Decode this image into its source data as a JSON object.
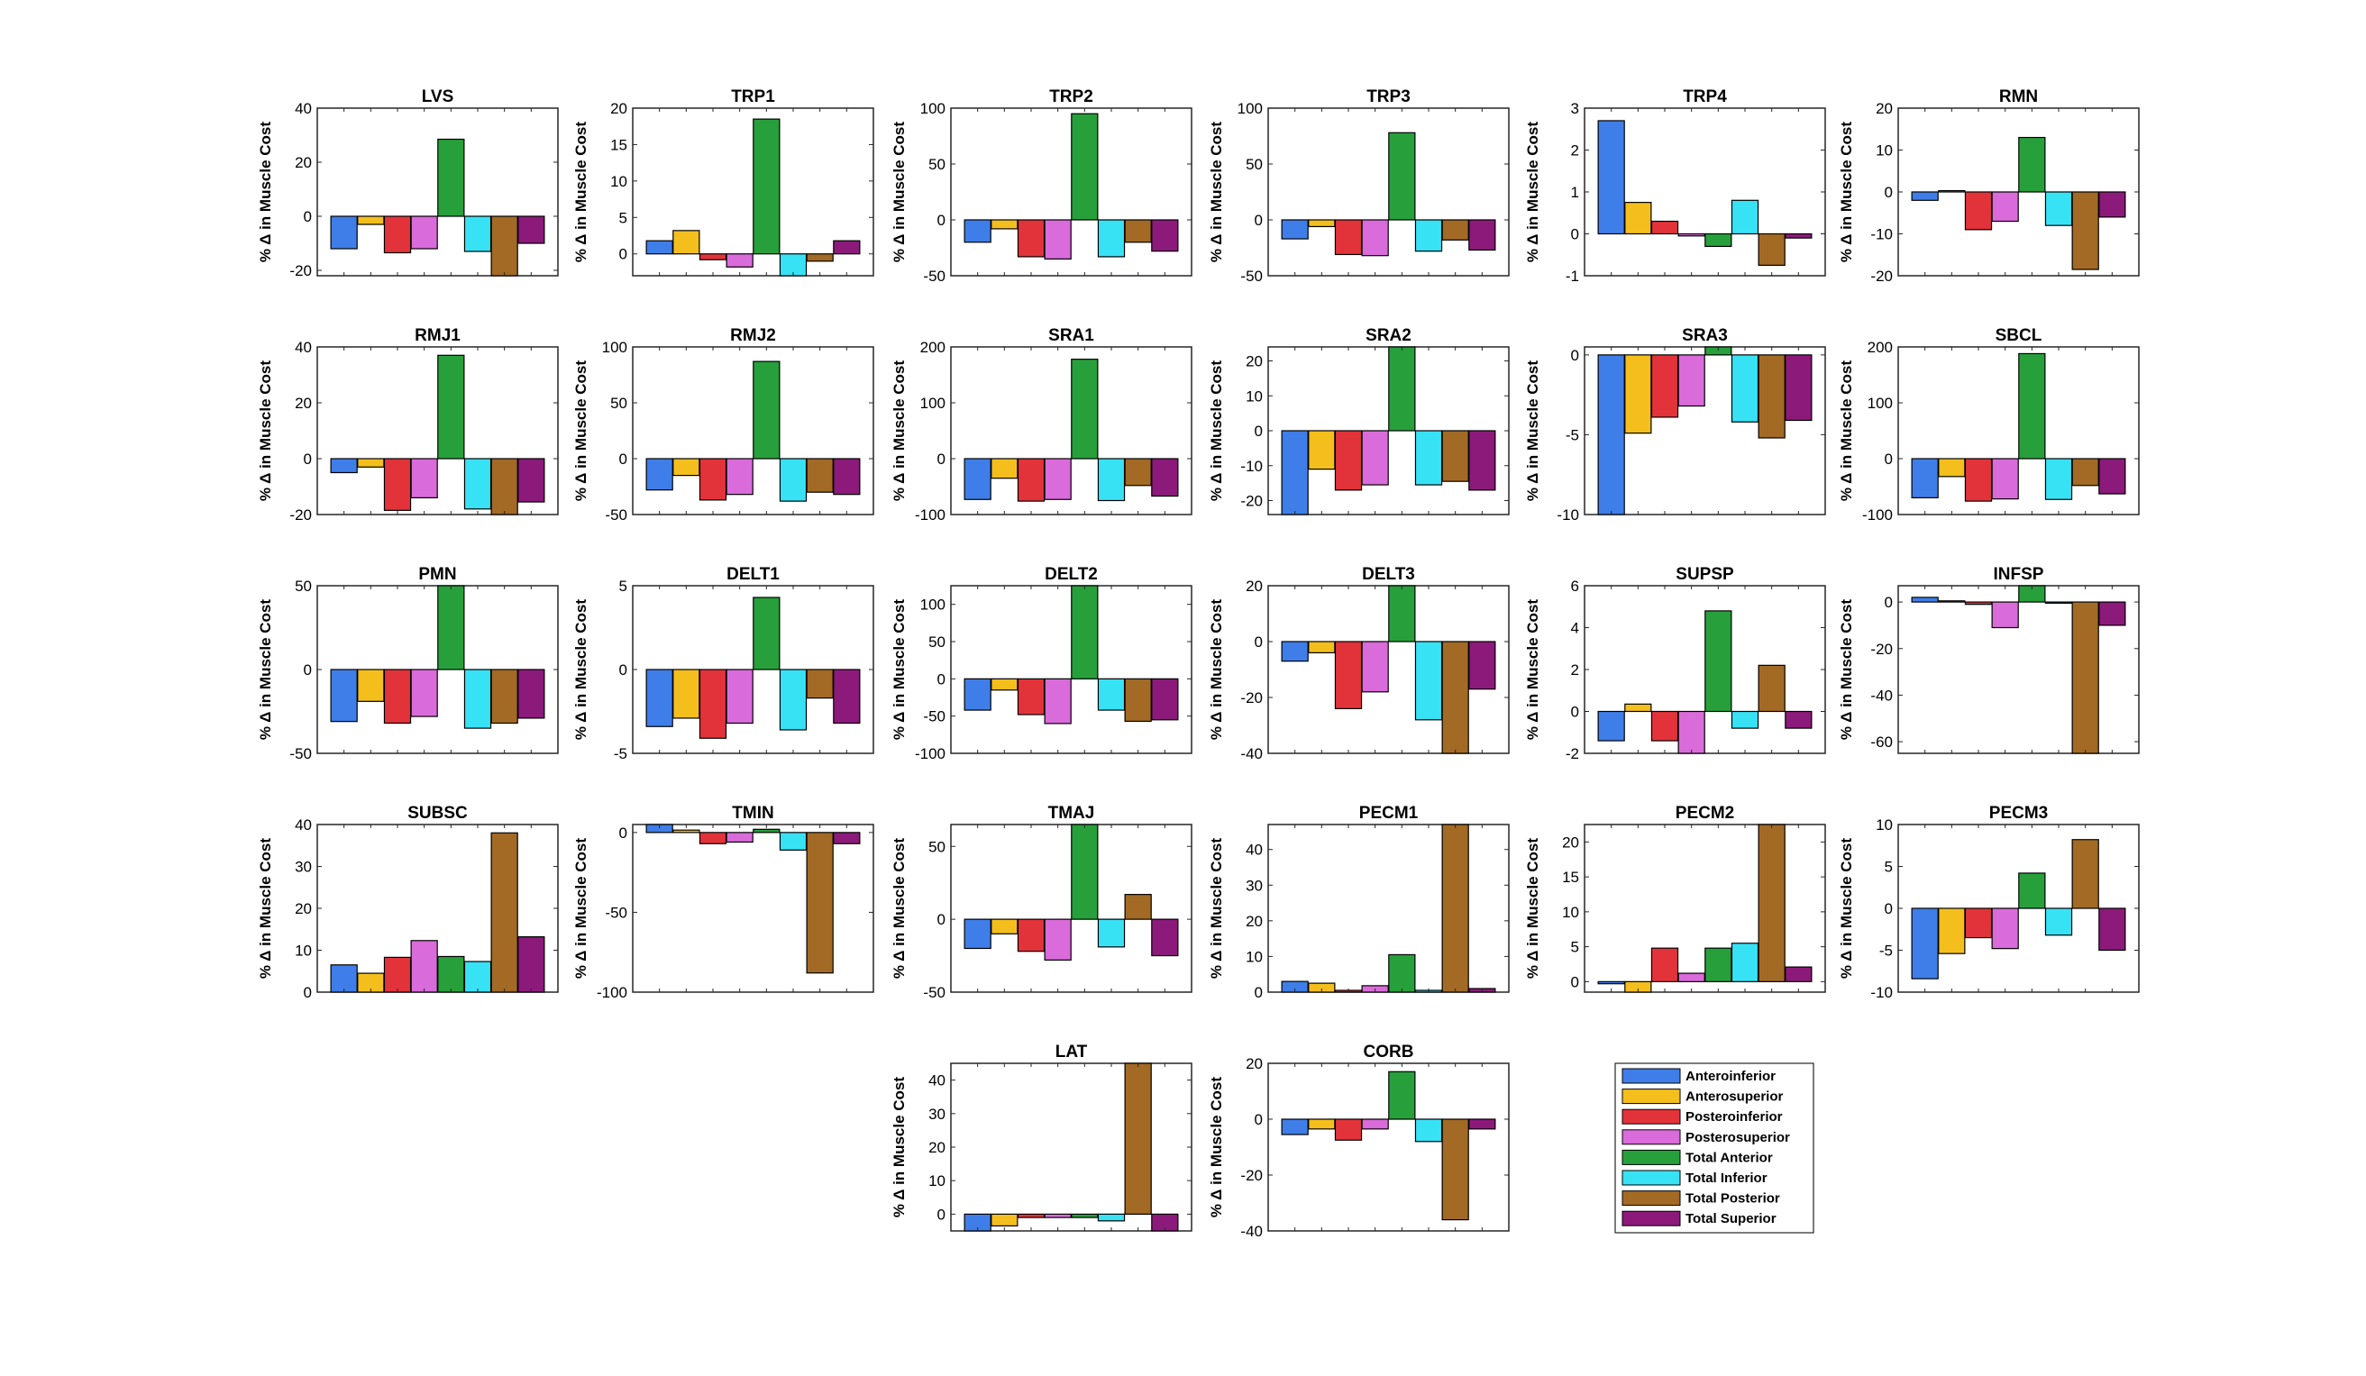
{
  "legend": {
    "placement": "bottom-right",
    "entries": [
      {
        "name": "Anteroinferior",
        "color": "#3F7EE8"
      },
      {
        "name": "Anterosuperior",
        "color": "#F4BF1C"
      },
      {
        "name": "Posteroinferior",
        "color": "#E3333A"
      },
      {
        "name": "Posterosuperior",
        "color": "#DA6BDA"
      },
      {
        "name": "Total Anterior",
        "color": "#27A03B"
      },
      {
        "name": "Total Inferior",
        "color": "#38E2F5"
      },
      {
        "name": "Total Posterior",
        "color": "#A26A24"
      },
      {
        "name": "Total Superior",
        "color": "#8C1A7A"
      }
    ]
  },
  "chart_data": [
    {
      "type": "bar",
      "title": "LVS",
      "ylabel": "% Δ in Muscle Cost",
      "ylim": [
        -22,
        40
      ],
      "yticks": [
        -20,
        0,
        20,
        40
      ],
      "values": [
        -12,
        -3,
        -13.5,
        -12,
        28.5,
        -13,
        -22,
        -10
      ]
    },
    {
      "type": "bar",
      "title": "TRP1",
      "ylabel": "% Δ in Muscle Cost",
      "ylim": [
        -3,
        20
      ],
      "yticks": [
        0,
        5,
        10,
        15,
        20
      ],
      "values": [
        1.8,
        3.2,
        -0.8,
        -1.8,
        18.5,
        -3,
        -1,
        1.8
      ]
    },
    {
      "type": "bar",
      "title": "TRP2",
      "ylabel": "% Δ in Muscle Cost",
      "ylim": [
        -50,
        100
      ],
      "yticks": [
        -50,
        0,
        50,
        100
      ],
      "values": [
        -20,
        -8,
        -33,
        -35,
        95,
        -33,
        -20,
        -28
      ]
    },
    {
      "type": "bar",
      "title": "TRP3",
      "ylabel": "% Δ in Muscle Cost",
      "ylim": [
        -50,
        100
      ],
      "yticks": [
        -50,
        0,
        50,
        100
      ],
      "values": [
        -17,
        -6,
        -31,
        -32,
        78,
        -28,
        -18,
        -27
      ]
    },
    {
      "type": "bar",
      "title": "TRP4",
      "ylabel": "% Δ in Muscle Cost",
      "ylim": [
        -1,
        3
      ],
      "yticks": [
        -1,
        0,
        1,
        2,
        3
      ],
      "values": [
        2.7,
        0.75,
        0.3,
        -0.05,
        -0.3,
        0.8,
        -0.75,
        -0.1
      ]
    },
    {
      "type": "bar",
      "title": "RMN",
      "ylabel": "% Δ in Muscle Cost",
      "ylim": [
        -20,
        20
      ],
      "yticks": [
        -20,
        -10,
        0,
        10,
        20
      ],
      "values": [
        -2,
        0.3,
        -9,
        -7,
        13,
        -8,
        -18.5,
        -6
      ]
    },
    {
      "type": "bar",
      "title": "RMJ1",
      "ylabel": "% Δ in Muscle Cost",
      "ylim": [
        -20,
        40
      ],
      "yticks": [
        -20,
        0,
        20,
        40
      ],
      "values": [
        -5,
        -3,
        -18.5,
        -14,
        37,
        -18,
        -20,
        -15.5
      ]
    },
    {
      "type": "bar",
      "title": "RMJ2",
      "ylabel": "% Δ in Muscle Cost",
      "ylim": [
        -50,
        100
      ],
      "yticks": [
        -50,
        0,
        50,
        100
      ],
      "values": [
        -28,
        -15,
        -37,
        -32,
        87,
        -38,
        -30,
        -32
      ]
    },
    {
      "type": "bar",
      "title": "SRA1",
      "ylabel": "% Δ in Muscle Cost",
      "ylim": [
        -100,
        200
      ],
      "yticks": [
        -100,
        0,
        100,
        200
      ],
      "values": [
        -73,
        -35,
        -76,
        -73,
        178,
        -75,
        -48,
        -67
      ]
    },
    {
      "type": "bar",
      "title": "SRA2",
      "ylabel": "% Δ in Muscle Cost",
      "ylim": [
        -24,
        24
      ],
      "yticks": [
        -20,
        -10,
        0,
        10,
        20
      ],
      "values": [
        -24,
        -11,
        -17,
        -15.5,
        24,
        -15.5,
        -14.5,
        -17
      ]
    },
    {
      "type": "bar",
      "title": "SRA3",
      "ylabel": "% Δ in Muscle Cost",
      "ylim": [
        -10,
        0.5
      ],
      "yticks": [
        -10,
        -5,
        0
      ],
      "values": [
        -10,
        -4.9,
        -3.9,
        -3.2,
        0.5,
        -4.2,
        -5.2,
        -4.1
      ]
    },
    {
      "type": "bar",
      "title": "SBCL",
      "ylabel": "% Δ in Muscle Cost",
      "ylim": [
        -100,
        200
      ],
      "yticks": [
        -100,
        0,
        100,
        200
      ],
      "values": [
        -70,
        -32,
        -76,
        -72,
        188,
        -73,
        -48,
        -63
      ]
    },
    {
      "type": "bar",
      "title": "PMN",
      "ylabel": "% Δ in Muscle Cost",
      "ylim": [
        -50,
        50
      ],
      "yticks": [
        -50,
        0,
        50
      ],
      "values": [
        -31,
        -19,
        -32,
        -28,
        50,
        -35,
        -32,
        -29
      ]
    },
    {
      "type": "bar",
      "title": "DELT1",
      "ylabel": "% Δ in Muscle Cost",
      "ylim": [
        -5,
        5
      ],
      "yticks": [
        -5,
        0,
        5
      ],
      "values": [
        -3.4,
        -2.9,
        -4.1,
        -3.2,
        4.3,
        -3.6,
        -1.7,
        -3.2
      ]
    },
    {
      "type": "bar",
      "title": "DELT2",
      "ylabel": "% Δ in Muscle Cost",
      "ylim": [
        -100,
        125
      ],
      "yticks": [
        -100,
        -50,
        0,
        50,
        100
      ],
      "values": [
        -42,
        -15,
        -48,
        -60,
        125,
        -42,
        -57,
        -55
      ]
    },
    {
      "type": "bar",
      "title": "DELT3",
      "ylabel": "% Δ in Muscle Cost",
      "ylim": [
        -40,
        20
      ],
      "yticks": [
        -40,
        -20,
        0,
        20
      ],
      "values": [
        -7,
        -4,
        -24,
        -18,
        20,
        -28,
        -40,
        -17
      ]
    },
    {
      "type": "bar",
      "title": "SUPSP",
      "ylabel": "% Δ in Muscle Cost",
      "ylim": [
        -2,
        6
      ],
      "yticks": [
        -2,
        0,
        2,
        4,
        6
      ],
      "values": [
        -1.4,
        0.35,
        -1.4,
        -2,
        4.8,
        -0.8,
        2.2,
        -0.8
      ]
    },
    {
      "type": "bar",
      "title": "INFSP",
      "ylabel": "% Δ in Muscle Cost",
      "ylim": [
        -65,
        7
      ],
      "yticks": [
        -60,
        -40,
        -20,
        0
      ],
      "values": [
        2,
        0.5,
        -1,
        -11,
        7,
        -0.5,
        -65,
        -10
      ]
    },
    {
      "type": "bar",
      "title": "SUBSC",
      "ylabel": "% Δ in Muscle Cost",
      "ylim": [
        0,
        40
      ],
      "yticks": [
        0,
        10,
        20,
        30,
        40
      ],
      "values": [
        6.5,
        4.5,
        8.3,
        12.3,
        8.5,
        7.3,
        38,
        13.2
      ]
    },
    {
      "type": "bar",
      "title": "TMIN",
      "ylabel": "% Δ in Muscle Cost",
      "ylim": [
        -100,
        5
      ],
      "yticks": [
        -100,
        -50,
        0
      ],
      "values": [
        5,
        1.5,
        -7,
        -6,
        2,
        -11,
        -88,
        -7
      ]
    },
    {
      "type": "bar",
      "title": "TMAJ",
      "ylabel": "% Δ in Muscle Cost",
      "ylim": [
        -50,
        65
      ],
      "yticks": [
        -50,
        0,
        50
      ],
      "values": [
        -20,
        -10,
        -22,
        -28,
        65,
        -19,
        17,
        -25
      ]
    },
    {
      "type": "bar",
      "title": "PECM1",
      "ylabel": "% Δ in Muscle Cost",
      "ylim": [
        0,
        47
      ],
      "yticks": [
        0,
        10,
        20,
        30,
        40
      ],
      "values": [
        3,
        2.5,
        0.5,
        1.8,
        10.5,
        0.5,
        47,
        1
      ]
    },
    {
      "type": "bar",
      "title": "PECM2",
      "ylabel": "% Δ in Muscle Cost",
      "ylim": [
        -1.5,
        22.5
      ],
      "yticks": [
        0,
        5,
        10,
        15,
        20
      ],
      "values": [
        -0.3,
        -1.5,
        4.8,
        1.2,
        4.8,
        5.5,
        22.5,
        2.1
      ]
    },
    {
      "type": "bar",
      "title": "PECM3",
      "ylabel": "% Δ in Muscle Cost",
      "ylim": [
        -10,
        10
      ],
      "yticks": [
        -10,
        -5,
        0,
        5,
        10
      ],
      "values": [
        -8.4,
        -5.4,
        -3.5,
        -4.8,
        4.2,
        -3.2,
        8.2,
        -5
      ]
    },
    {
      "type": "bar",
      "title": "LAT",
      "ylabel": "% Δ in Muscle Cost",
      "ylim": [
        -5,
        45
      ],
      "yticks": [
        0,
        10,
        20,
        30,
        40
      ],
      "values": [
        -5,
        -3.5,
        -1,
        -1,
        -1,
        -2,
        45,
        -5
      ]
    },
    {
      "type": "bar",
      "title": "CORB",
      "ylabel": "% Δ in Muscle Cost",
      "ylim": [
        -40,
        20
      ],
      "yticks": [
        -40,
        -20,
        0,
        20
      ],
      "values": [
        -5.5,
        -3.5,
        -7.5,
        -3.5,
        17,
        -8,
        -36,
        -3.5
      ]
    }
  ]
}
